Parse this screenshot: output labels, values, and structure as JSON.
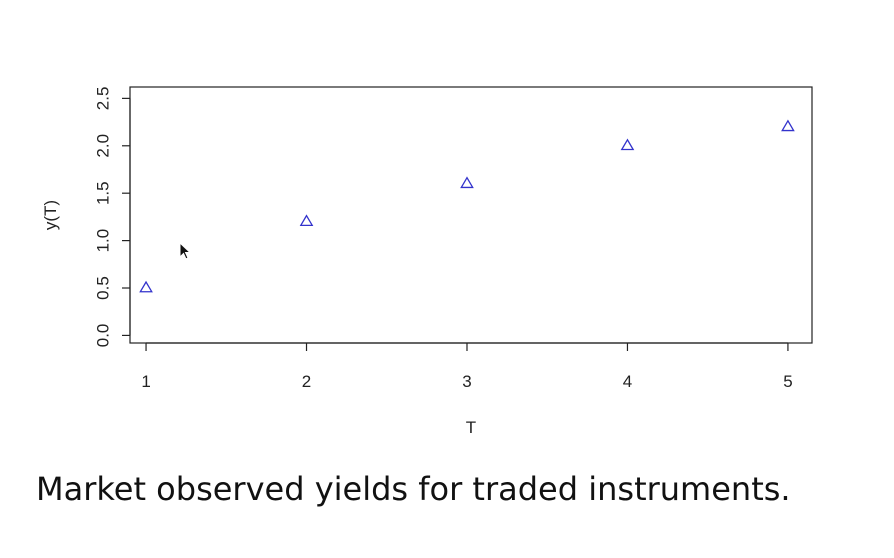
{
  "chart_data": {
    "type": "scatter",
    "title": "",
    "xlabel": "T",
    "ylabel": "y(T)",
    "xlim": [
      0.9,
      5.15
    ],
    "ylim": [
      -0.08,
      2.62
    ],
    "x_ticks": [
      1,
      2,
      3,
      4,
      5
    ],
    "x_tick_labels": [
      "1",
      "2",
      "3",
      "4",
      "5"
    ],
    "y_ticks": [
      0.0,
      0.5,
      1.0,
      1.5,
      2.0,
      2.5
    ],
    "y_tick_labels": [
      "0.0",
      "0.5",
      "1.0",
      "1.5",
      "2.0",
      "2.5"
    ],
    "grid": false,
    "legend": "none",
    "marker": "open-triangle",
    "marker_color": "#3333cc",
    "series": [
      {
        "x": [
          1,
          2,
          3,
          4,
          5
        ],
        "y": [
          0.5,
          1.2,
          1.6,
          2.0,
          2.2
        ]
      }
    ]
  },
  "caption": "Market observed yields for traded instruments.",
  "cursor_icon": "mouse-pointer-icon"
}
